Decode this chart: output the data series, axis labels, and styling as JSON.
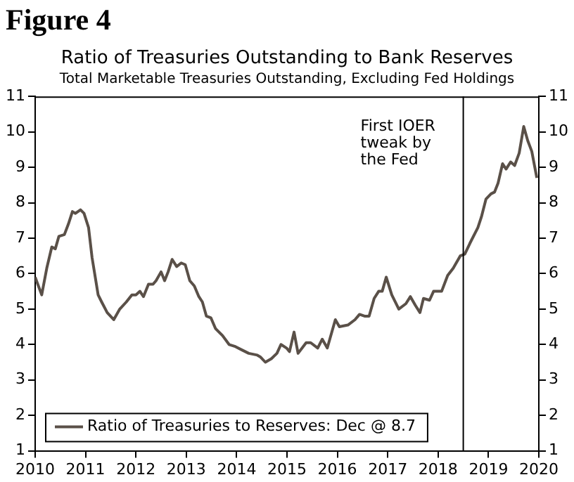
{
  "chart_data": {
    "type": "line",
    "title": "Ratio of Treasuries Outstanding to Bank Reserves",
    "subtitle": "Total Marketable Treasuries Outstanding, Excluding Fed Holdings",
    "annotations": [
      "Figure 4"
    ],
    "xlim": [
      2010,
      2020
    ],
    "xticks": [
      2010,
      2011,
      2012,
      2013,
      2014,
      2015,
      2016,
      2017,
      2018,
      2019,
      2020
    ],
    "ylim": [
      1,
      11
    ],
    "yticks": [
      1,
      2,
      3,
      4,
      5,
      6,
      7,
      8,
      9,
      10,
      11
    ],
    "y2lim": [
      1,
      11
    ],
    "y2ticks": [
      1,
      2,
      3,
      4,
      5,
      6,
      7,
      8,
      9,
      10,
      11
    ],
    "grid": false,
    "legend": "bottom left",
    "marker": "none",
    "line_style": "solid",
    "ref_lines": [
      {
        "axis": "x",
        "value": 2018.5,
        "label": "First IOER tweak by the Fed",
        "color": "#000000"
      }
    ],
    "series": [
      {
        "name": "Ratio of Treasuries to Reserves: Dec @ 8.7",
        "color": "#5a5048",
        "x": [
          2010.0,
          2010.13,
          2010.23,
          2010.33,
          2010.4,
          2010.47,
          2010.58,
          2010.66,
          2010.74,
          2010.8,
          2010.9,
          2010.97,
          2011.06,
          2011.13,
          2011.25,
          2011.32,
          2011.43,
          2011.56,
          2011.68,
          2011.81,
          2011.92,
          2012.0,
          2012.08,
          2012.15,
          2012.25,
          2012.34,
          2012.4,
          2012.5,
          2012.57,
          2012.64,
          2012.72,
          2012.81,
          2012.9,
          2012.98,
          2013.07,
          2013.16,
          2013.25,
          2013.32,
          2013.4,
          2013.49,
          2013.58,
          2013.72,
          2013.85,
          2013.96,
          2014.1,
          2014.24,
          2014.41,
          2014.47,
          2014.57,
          2014.69,
          2014.8,
          2014.88,
          2014.99,
          2015.05,
          2015.14,
          2015.22,
          2015.38,
          2015.47,
          2015.61,
          2015.7,
          2015.8,
          2015.96,
          2016.04,
          2016.21,
          2016.35,
          2016.44,
          2016.54,
          2016.63,
          2016.73,
          2016.82,
          2016.89,
          2016.97,
          2017.08,
          2017.22,
          2017.36,
          2017.45,
          2017.55,
          2017.64,
          2017.71,
          2017.83,
          2017.91,
          2018.07,
          2018.19,
          2018.3,
          2018.44,
          2018.53,
          2018.63,
          2018.79,
          2018.86,
          2018.95,
          2019.05,
          2019.12,
          2019.19,
          2019.28,
          2019.35,
          2019.44,
          2019.52,
          2019.61,
          2019.7,
          2019.78,
          2019.86,
          2019.96
        ],
        "values": [
          5.9,
          5.4,
          6.15,
          6.75,
          6.7,
          7.05,
          7.1,
          7.4,
          7.75,
          7.7,
          7.8,
          7.7,
          7.3,
          6.45,
          5.4,
          5.2,
          4.9,
          4.7,
          5.0,
          5.2,
          5.4,
          5.4,
          5.5,
          5.35,
          5.7,
          5.7,
          5.8,
          6.05,
          5.8,
          6.05,
          6.4,
          6.2,
          6.3,
          6.25,
          5.8,
          5.65,
          5.35,
          5.2,
          4.8,
          4.75,
          4.45,
          4.25,
          4.0,
          3.95,
          3.85,
          3.75,
          3.7,
          3.65,
          3.5,
          3.6,
          3.75,
          4.0,
          3.9,
          3.8,
          4.35,
          3.75,
          4.05,
          4.05,
          3.9,
          4.15,
          3.9,
          4.7,
          4.5,
          4.55,
          4.7,
          4.85,
          4.8,
          4.8,
          5.3,
          5.5,
          5.5,
          5.9,
          5.4,
          5.0,
          5.15,
          5.35,
          5.1,
          4.9,
          5.3,
          5.25,
          5.5,
          5.5,
          5.95,
          6.15,
          6.5,
          6.55,
          6.85,
          7.3,
          7.6,
          8.1,
          8.25,
          8.3,
          8.55,
          9.1,
          8.95,
          9.15,
          9.05,
          9.4,
          10.15,
          9.75,
          9.45,
          8.7
        ]
      }
    ]
  }
}
